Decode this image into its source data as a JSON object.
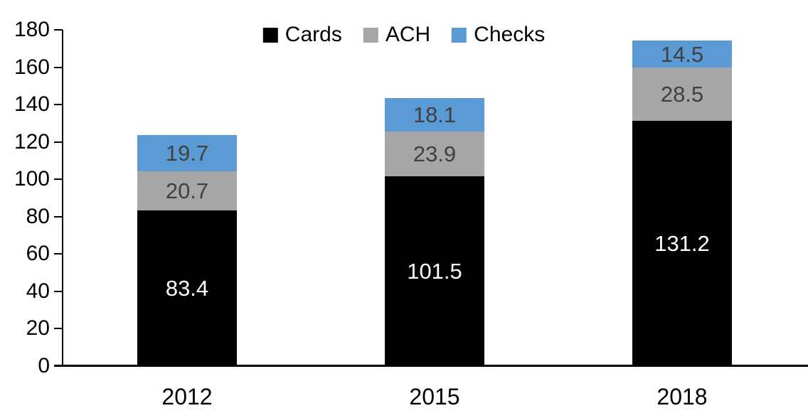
{
  "chart_data": {
    "type": "bar",
    "stacked": true,
    "title": "",
    "xlabel": "",
    "ylabel": "",
    "categories": [
      "2012",
      "2015",
      "2018"
    ],
    "series": [
      {
        "name": "Cards",
        "color": "#000000",
        "label_color": "#FFFFFF",
        "values": [
          83.4,
          101.5,
          131.2
        ]
      },
      {
        "name": "ACH",
        "color": "#A6A6A6",
        "label_color": "#404040",
        "values": [
          20.7,
          23.9,
          28.5
        ]
      },
      {
        "name": "Checks",
        "color": "#5B9BD5",
        "label_color": "#404040",
        "values": [
          19.7,
          18.1,
          14.5
        ]
      }
    ],
    "ylim": [
      0,
      180
    ],
    "yticks": [
      0,
      20,
      40,
      60,
      80,
      100,
      120,
      140,
      160,
      180
    ],
    "grid": false,
    "legend_position": "top",
    "legend_order": [
      "Cards",
      "ACH",
      "Checks"
    ],
    "axis_color": "#000000",
    "background_color": "#FFFFFF"
  }
}
